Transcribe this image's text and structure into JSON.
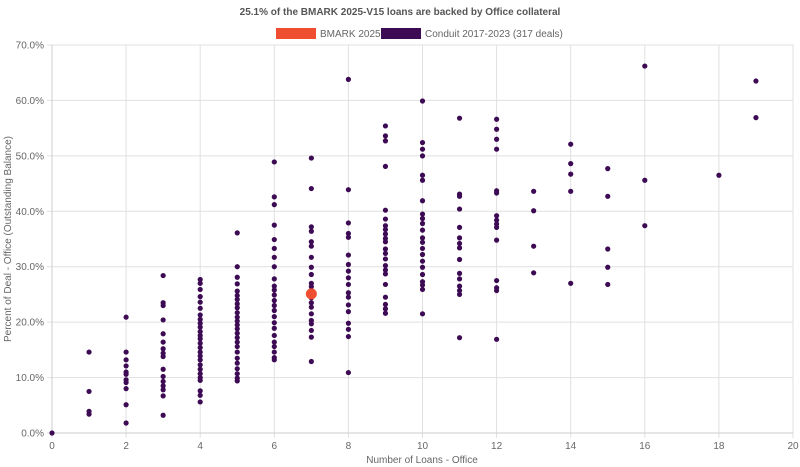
{
  "chart_data": {
    "type": "scatter",
    "title": "25.1% of the BMARK 2025-V15 loans are backed by Office collateral",
    "xlabel": "Number of Loans - Office",
    "ylabel": "Percent of Deal - Office (Outstanding Balance)",
    "xlim": [
      0,
      20
    ],
    "ylim": [
      0,
      70
    ],
    "x_ticks": [
      "0",
      "2",
      "4",
      "6",
      "8",
      "10",
      "12",
      "14",
      "16",
      "18",
      "20"
    ],
    "y_ticks": [
      "0.0%",
      "10.0%",
      "20.0%",
      "30.0%",
      "40.0%",
      "50.0%",
      "60.0%",
      "70.0%"
    ],
    "grid": true,
    "legend_position": "top",
    "series": [
      {
        "name": "BMARK 2025-V15",
        "color": "#f04e30",
        "points": [
          [
            7,
            25.1
          ]
        ]
      },
      {
        "name": "Conduit 2017-2023 (317 deals)",
        "color": "#3d0a54",
        "points": [
          [
            0,
            0.0
          ],
          [
            1,
            14.6
          ],
          [
            1,
            7.5
          ],
          [
            1,
            3.9
          ],
          [
            1,
            3.4
          ],
          [
            2,
            20.9
          ],
          [
            2,
            14.6
          ],
          [
            2,
            13.2
          ],
          [
            2,
            12.1
          ],
          [
            2,
            11.0
          ],
          [
            2,
            10.6
          ],
          [
            2,
            9.6
          ],
          [
            2,
            9.1
          ],
          [
            2,
            8.0
          ],
          [
            2,
            5.1
          ],
          [
            2,
            1.8
          ],
          [
            3,
            28.4
          ],
          [
            3,
            23.5
          ],
          [
            3,
            23.0
          ],
          [
            3,
            20.4
          ],
          [
            3,
            17.9
          ],
          [
            3,
            16.4
          ],
          [
            3,
            15.2
          ],
          [
            3,
            14.4
          ],
          [
            3,
            13.8
          ],
          [
            3,
            11.5
          ],
          [
            3,
            10.2
          ],
          [
            3,
            9.3
          ],
          [
            3,
            8.5
          ],
          [
            3,
            7.8
          ],
          [
            3,
            6.7
          ],
          [
            3,
            3.2
          ],
          [
            4,
            27.7
          ],
          [
            4,
            27.0
          ],
          [
            4,
            25.9
          ],
          [
            4,
            24.6
          ],
          [
            4,
            23.6
          ],
          [
            4,
            22.5
          ],
          [
            4,
            21.3
          ],
          [
            4,
            20.5
          ],
          [
            4,
            19.8
          ],
          [
            4,
            19.1
          ],
          [
            4,
            18.3
          ],
          [
            4,
            17.6
          ],
          [
            4,
            17.0
          ],
          [
            4,
            16.2
          ],
          [
            4,
            15.4
          ],
          [
            4,
            14.6
          ],
          [
            4,
            13.9
          ],
          [
            4,
            13.2
          ],
          [
            4,
            12.3
          ],
          [
            4,
            11.5
          ],
          [
            4,
            10.7
          ],
          [
            4,
            10.0
          ],
          [
            4,
            9.5
          ],
          [
            4,
            7.6
          ],
          [
            4,
            6.8
          ],
          [
            4,
            5.6
          ],
          [
            5,
            36.1
          ],
          [
            5,
            30.0
          ],
          [
            5,
            28.1
          ],
          [
            5,
            26.9
          ],
          [
            5,
            25.6
          ],
          [
            5,
            24.8
          ],
          [
            5,
            24.1
          ],
          [
            5,
            23.3
          ],
          [
            5,
            22.6
          ],
          [
            5,
            21.7
          ],
          [
            5,
            20.9
          ],
          [
            5,
            20.2
          ],
          [
            5,
            19.5
          ],
          [
            5,
            18.8
          ],
          [
            5,
            18.0
          ],
          [
            5,
            17.2
          ],
          [
            5,
            16.4
          ],
          [
            5,
            15.6
          ],
          [
            5,
            14.6
          ],
          [
            5,
            13.5
          ],
          [
            5,
            12.6
          ],
          [
            5,
            11.6
          ],
          [
            5,
            10.7
          ],
          [
            5,
            9.9
          ],
          [
            5,
            9.4
          ],
          [
            6,
            48.9
          ],
          [
            6,
            42.6
          ],
          [
            6,
            41.2
          ],
          [
            6,
            37.5
          ],
          [
            6,
            34.9
          ],
          [
            6,
            33.3
          ],
          [
            6,
            31.7
          ],
          [
            6,
            30.0
          ],
          [
            6,
            27.8
          ],
          [
            6,
            26.5
          ],
          [
            6,
            25.8
          ],
          [
            6,
            24.9
          ],
          [
            6,
            23.9
          ],
          [
            6,
            23.0
          ],
          [
            6,
            22.1
          ],
          [
            6,
            21.0
          ],
          [
            6,
            19.9
          ],
          [
            6,
            18.9
          ],
          [
            6,
            17.6
          ],
          [
            6,
            16.4
          ],
          [
            6,
            15.6
          ],
          [
            6,
            14.6
          ],
          [
            6,
            13.6
          ],
          [
            6,
            13.2
          ],
          [
            7,
            49.6
          ],
          [
            7,
            44.1
          ],
          [
            7,
            37.2
          ],
          [
            7,
            36.4
          ],
          [
            7,
            34.5
          ],
          [
            7,
            33.7
          ],
          [
            7,
            31.7
          ],
          [
            7,
            29.9
          ],
          [
            7,
            28.6
          ],
          [
            7,
            27.0
          ],
          [
            7,
            26.4
          ],
          [
            7,
            25.7
          ],
          [
            7,
            24.4
          ],
          [
            7,
            23.5
          ],
          [
            7,
            22.7
          ],
          [
            7,
            21.5
          ],
          [
            7,
            20.3
          ],
          [
            7,
            19.7
          ],
          [
            7,
            18.5
          ],
          [
            7,
            17.3
          ],
          [
            7,
            12.9
          ],
          [
            8,
            63.8
          ],
          [
            8,
            43.9
          ],
          [
            8,
            37.9
          ],
          [
            8,
            36.0
          ],
          [
            8,
            35.3
          ],
          [
            8,
            32.1
          ],
          [
            8,
            30.4
          ],
          [
            8,
            29.2
          ],
          [
            8,
            28.0
          ],
          [
            8,
            26.8
          ],
          [
            8,
            25.3
          ],
          [
            8,
            24.5
          ],
          [
            8,
            23.1
          ],
          [
            8,
            21.9
          ],
          [
            8,
            19.8
          ],
          [
            8,
            18.7
          ],
          [
            8,
            17.4
          ],
          [
            8,
            10.9
          ],
          [
            9,
            55.4
          ],
          [
            9,
            53.6
          ],
          [
            9,
            52.7
          ],
          [
            9,
            48.1
          ],
          [
            9,
            40.2
          ],
          [
            9,
            38.6
          ],
          [
            9,
            37.4
          ],
          [
            9,
            36.7
          ],
          [
            9,
            35.9
          ],
          [
            9,
            35.1
          ],
          [
            9,
            34.5
          ],
          [
            9,
            33.2
          ],
          [
            9,
            32.4
          ],
          [
            9,
            31.4
          ],
          [
            9,
            30.2
          ],
          [
            9,
            29.4
          ],
          [
            9,
            28.7
          ],
          [
            9,
            26.8
          ],
          [
            9,
            24.5
          ],
          [
            9,
            23.2
          ],
          [
            9,
            22.4
          ],
          [
            9,
            21.6
          ],
          [
            10,
            59.9
          ],
          [
            10,
            52.4
          ],
          [
            10,
            51.2
          ],
          [
            10,
            50.0
          ],
          [
            10,
            46.5
          ],
          [
            10,
            45.6
          ],
          [
            10,
            41.9
          ],
          [
            10,
            39.5
          ],
          [
            10,
            38.7
          ],
          [
            10,
            37.8
          ],
          [
            10,
            36.6
          ],
          [
            10,
            35.2
          ],
          [
            10,
            34.4
          ],
          [
            10,
            33.3
          ],
          [
            10,
            32.2
          ],
          [
            10,
            31.0
          ],
          [
            10,
            29.9
          ],
          [
            10,
            28.6
          ],
          [
            10,
            27.3
          ],
          [
            10,
            26.7
          ],
          [
            10,
            25.9
          ],
          [
            10,
            21.5
          ],
          [
            11,
            56.8
          ],
          [
            11,
            43.1
          ],
          [
            11,
            42.7
          ],
          [
            11,
            40.4
          ],
          [
            11,
            37.1
          ],
          [
            11,
            35.2
          ],
          [
            11,
            34.2
          ],
          [
            11,
            33.4
          ],
          [
            11,
            31.3
          ],
          [
            11,
            28.8
          ],
          [
            11,
            27.8
          ],
          [
            11,
            26.5
          ],
          [
            11,
            25.7
          ],
          [
            11,
            25.0
          ],
          [
            11,
            17.2
          ],
          [
            12,
            56.6
          ],
          [
            12,
            54.8
          ],
          [
            12,
            53.0
          ],
          [
            12,
            51.2
          ],
          [
            12,
            43.7
          ],
          [
            12,
            43.3
          ],
          [
            12,
            39.2
          ],
          [
            12,
            38.4
          ],
          [
            12,
            37.7
          ],
          [
            12,
            37.1
          ],
          [
            12,
            34.8
          ],
          [
            12,
            27.5
          ],
          [
            12,
            26.2
          ],
          [
            12,
            25.7
          ],
          [
            12,
            16.9
          ],
          [
            13,
            43.6
          ],
          [
            13,
            40.1
          ],
          [
            13,
            33.7
          ],
          [
            13,
            28.9
          ],
          [
            14,
            52.1
          ],
          [
            14,
            48.6
          ],
          [
            14,
            46.7
          ],
          [
            14,
            43.6
          ],
          [
            14,
            27.0
          ],
          [
            15,
            47.7
          ],
          [
            15,
            42.7
          ],
          [
            15,
            33.2
          ],
          [
            15,
            29.9
          ],
          [
            15,
            26.8
          ],
          [
            16,
            66.2
          ],
          [
            16,
            45.6
          ],
          [
            16,
            37.4
          ],
          [
            18,
            46.5
          ],
          [
            19,
            63.5
          ],
          [
            19,
            56.9
          ]
        ]
      }
    ]
  }
}
